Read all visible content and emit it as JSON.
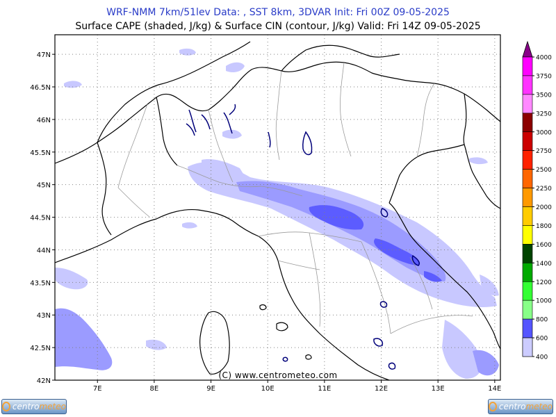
{
  "header": {
    "line1": "WRF-NMM 7km/51lev  Data: , SST 8km, 3DVAR  Init: Fri 00Z 09-05-2025",
    "line2": "Surface CAPE (shaded, J/kg) & Surface CIN (contour, J/kg)  Valid: Fri 14Z 09-05-2025"
  },
  "map": {
    "lon_range": [
      6.25,
      14.1
    ],
    "lat_range": [
      42.0,
      47.3
    ],
    "lon_ticks": [
      "7E",
      "8E",
      "9E",
      "10E",
      "11E",
      "12E",
      "13E",
      "14E"
    ],
    "lat_ticks": [
      "47N",
      "46.5N",
      "46N",
      "45.5N",
      "45N",
      "44.5N",
      "44N",
      "43.5N",
      "43N",
      "42.5N",
      "42N"
    ],
    "grid": "dotted"
  },
  "legend": {
    "levels": [
      "4000",
      "3750",
      "3500",
      "3250",
      "3000",
      "2750",
      "2500",
      "2250",
      "2000",
      "1800",
      "1600",
      "1400",
      "1200",
      "1000",
      "800",
      "600",
      "400"
    ],
    "colors": [
      "#ff00ff",
      "#ff33ff",
      "#ff88ff",
      "#8c0000",
      "#cc0000",
      "#ff2200",
      "#ff6600",
      "#ff9900",
      "#ffcc00",
      "#ffff00",
      "#004400",
      "#00aa00",
      "#33ff33",
      "#88ff88",
      "#5555ff",
      "#9999ff",
      "#ccccff"
    ],
    "top_color": "#880088"
  },
  "footer": {
    "copyright": "(C) www.centrometeo.com",
    "logo_left": "centro",
    "logo_left_accent": "meteo",
    "logo_right": "centro",
    "logo_right_accent": "meteo"
  }
}
